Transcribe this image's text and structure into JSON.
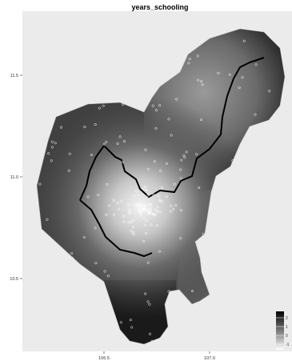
{
  "title": "years_schooling",
  "y_axis": {
    "ticks": [
      {
        "value": 11.5,
        "label": "11.5"
      },
      {
        "value": 11.0,
        "label": "11.0"
      },
      {
        "value": 10.5,
        "label": "10.5"
      }
    ]
  },
  "x_axis": {
    "ticks": [
      {
        "value": 106.5,
        "label": "106.5"
      },
      {
        "value": 107.0,
        "label": "107.0"
      }
    ]
  },
  "legend": {
    "placement": "bottom-right",
    "labels": [
      "2",
      "1",
      "0",
      "-1"
    ]
  },
  "colors": {
    "panel_background": "#ebebeb",
    "fill_dark": "#1a1a1a",
    "fill_mid": "#6e6e6e",
    "fill_light": "#f2f2f2",
    "boundary": "#000000",
    "points": "#ffffff"
  }
}
